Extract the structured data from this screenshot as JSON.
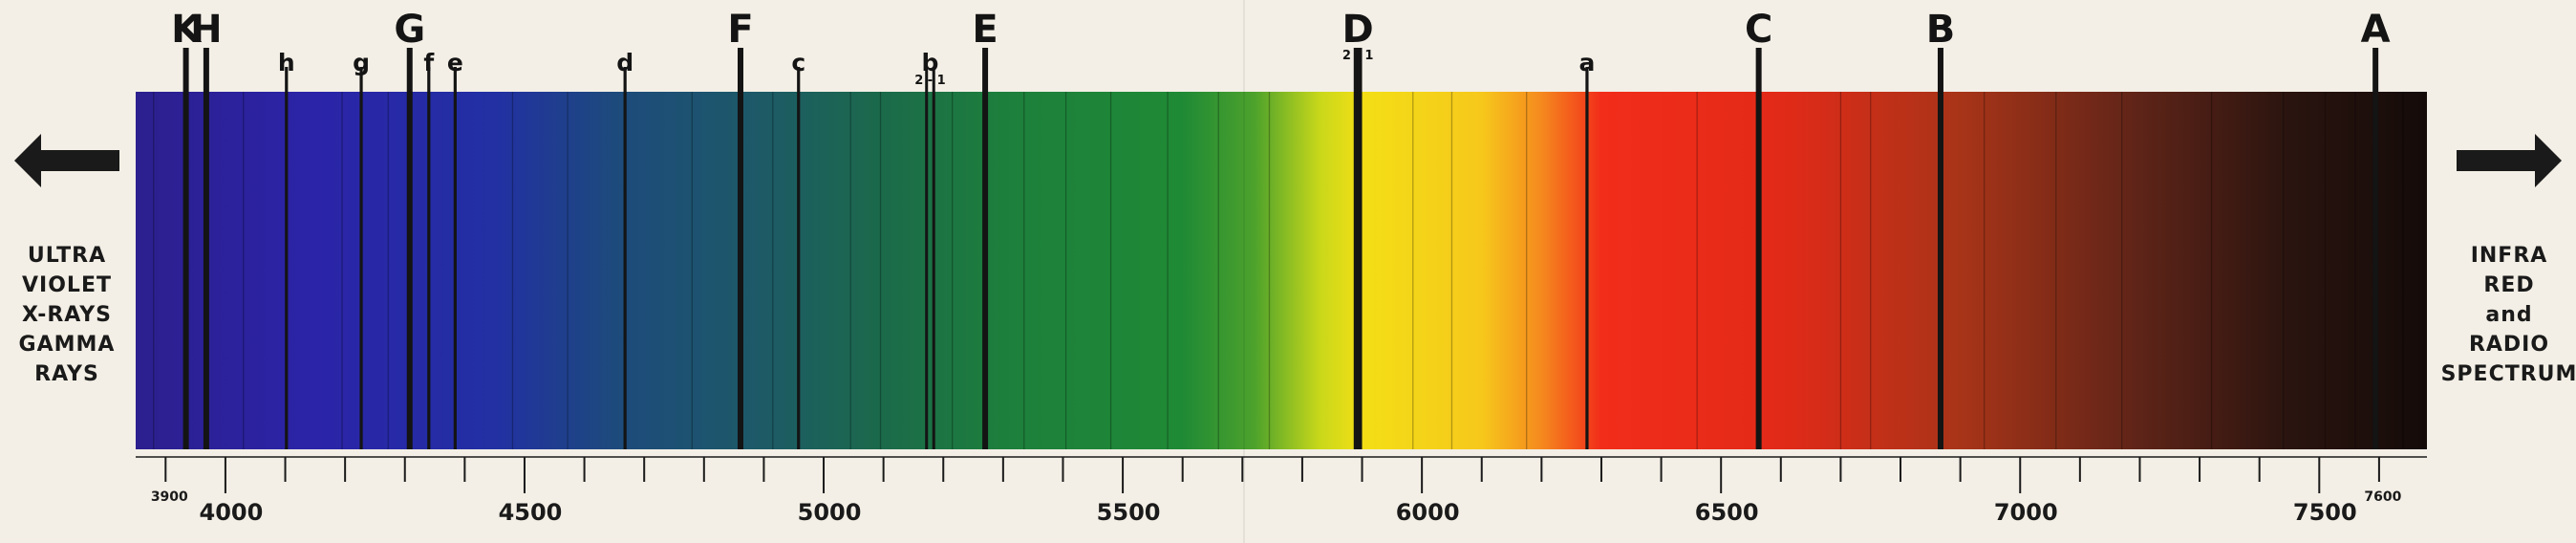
{
  "left_panel": {
    "text": "ULTRA\nVIOLET\nX-RAYS\nGAMMA\nRAYS"
  },
  "right_panel": {
    "text": "INFRA\nRED\nand\nRADIO\nSPECTRUM"
  },
  "colors": {
    "background": "#f3efe6",
    "ink": "#1a1a1a",
    "spectrum_stops": [
      {
        "wl": 3850,
        "color": "#2c1f8e"
      },
      {
        "wl": 4150,
        "color": "#2b24a8"
      },
      {
        "wl": 4450,
        "color": "#2230a3"
      },
      {
        "wl": 4650,
        "color": "#1d4a7c"
      },
      {
        "wl": 4900,
        "color": "#1d5a66"
      },
      {
        "wl": 5100,
        "color": "#1b6a4a"
      },
      {
        "wl": 5300,
        "color": "#1d7f3c"
      },
      {
        "wl": 5600,
        "color": "#1f8a35"
      },
      {
        "wl": 5720,
        "color": "#4da22c"
      },
      {
        "wl": 5830,
        "color": "#c9d81a"
      },
      {
        "wl": 5900,
        "color": "#f3df16"
      },
      {
        "wl": 6100,
        "color": "#f6c81b"
      },
      {
        "wl": 6200,
        "color": "#f5891e"
      },
      {
        "wl": 6300,
        "color": "#f22d1a"
      },
      {
        "wl": 6600,
        "color": "#e22a18"
      },
      {
        "wl": 6900,
        "color": "#a83418"
      },
      {
        "wl": 7200,
        "color": "#5e2418"
      },
      {
        "wl": 7450,
        "color": "#2a140f"
      },
      {
        "wl": 7680,
        "color": "#140b09"
      }
    ]
  },
  "spectrum": {
    "wl_min": 3850,
    "wl_max": 7680,
    "lines": [
      {
        "label": "K",
        "wl": 3934,
        "weight": "strong"
      },
      {
        "label": "H",
        "wl": 3968,
        "weight": "strong"
      },
      {
        "label": "h",
        "wl": 4102,
        "weight": "medium"
      },
      {
        "label": "g",
        "wl": 4227,
        "weight": "medium"
      },
      {
        "label": "G",
        "wl": 4308,
        "weight": "strong"
      },
      {
        "label": "f",
        "wl": 4340,
        "weight": "medium"
      },
      {
        "label": "e",
        "wl": 4384,
        "weight": "medium"
      },
      {
        "label": "d",
        "wl": 4668,
        "weight": "medium"
      },
      {
        "label": "F",
        "wl": 4861,
        "weight": "strong"
      },
      {
        "label": "c",
        "wl": 4958,
        "weight": "medium"
      },
      {
        "label": "b",
        "wl": 5175,
        "weight": "medium",
        "sub": "2 - 1",
        "pair": [
          5172,
          5184
        ]
      },
      {
        "label": "E",
        "wl": 5270,
        "weight": "strong"
      },
      {
        "label": "D",
        "wl": 5893,
        "weight": "strong",
        "sub": "2 - 1",
        "pair": [
          5890,
          5896
        ]
      },
      {
        "label": "a",
        "wl": 6276,
        "weight": "medium"
      },
      {
        "label": "C",
        "wl": 6563,
        "weight": "strong"
      },
      {
        "label": "B",
        "wl": 6867,
        "weight": "strong"
      },
      {
        "label": "A",
        "wl": 7594,
        "weight": "strong"
      }
    ],
    "faint_lines": [
      3880,
      4030,
      4195,
      4272,
      4480,
      4572,
      4780,
      4915,
      5045,
      5095,
      5215,
      5335,
      5405,
      5480,
      5575,
      5660,
      5745,
      5985,
      6050,
      6175,
      6460,
      6700,
      6750,
      6940,
      7060,
      7170,
      7320,
      7440,
      7510,
      7560,
      7640
    ]
  },
  "scale": {
    "tick_start": 3900,
    "tick_end": 7600,
    "tick_step": 100,
    "major_labels": [
      "4000",
      "4500",
      "5000",
      "5500",
      "6000",
      "6500",
      "7000",
      "7500"
    ],
    "minor_labels": [
      "3900",
      "7600"
    ]
  }
}
